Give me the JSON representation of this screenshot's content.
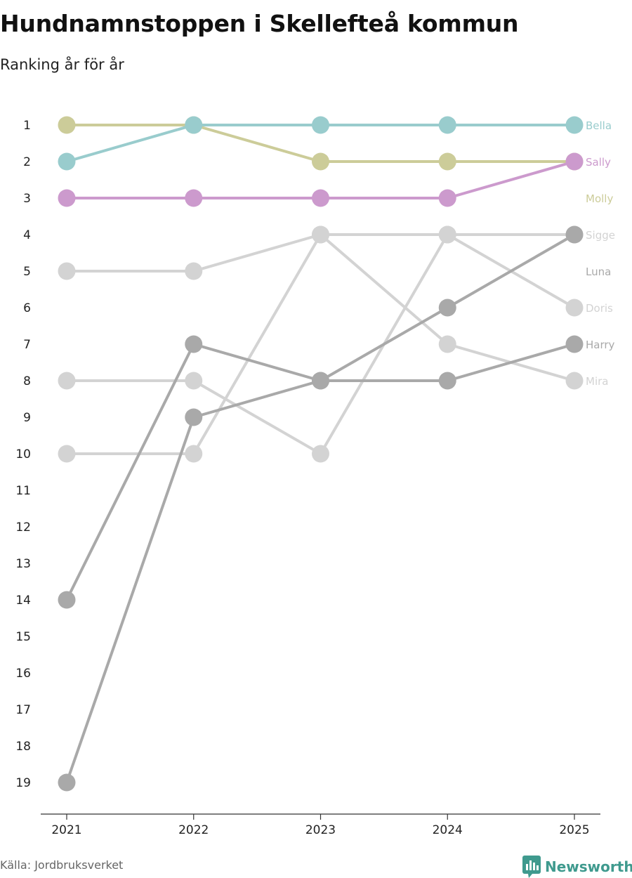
{
  "title": "Hundnamnstoppen i Skellefteå kommun",
  "subtitle": "Ranking år för år",
  "source": "Källa: Jordbruksverket",
  "brand": "Newsworthy",
  "colors": {
    "brand": "#3f9a8e"
  },
  "chart_data": {
    "type": "line",
    "title": "Hundnamnstoppen i Skellefteå kommun",
    "subtitle": "Ranking år för år",
    "x": [
      2021,
      2022,
      2023,
      2024,
      2025
    ],
    "ylim": [
      1,
      19
    ],
    "y_reversed": true,
    "y_ticks": [
      1,
      2,
      3,
      4,
      5,
      6,
      7,
      8,
      9,
      10,
      11,
      12,
      13,
      14,
      15,
      16,
      17,
      18,
      19
    ],
    "series": [
      {
        "name": "Bella",
        "color": "#99cccd",
        "values": [
          2,
          1,
          1,
          1,
          1
        ]
      },
      {
        "name": "Sally",
        "color": "#cc9acd",
        "values": [
          3,
          3,
          3,
          3,
          2
        ]
      },
      {
        "name": "Molly",
        "color": "#cccc99",
        "values": [
          1,
          1,
          2,
          2,
          2
        ]
      },
      {
        "name": "Sigge",
        "color": "#d3d3d3",
        "values": [
          5,
          5,
          4,
          4,
          4
        ]
      },
      {
        "name": "Luna",
        "color": "#a9a9a9",
        "values": [
          14,
          7,
          8,
          6,
          4
        ]
      },
      {
        "name": "Doris",
        "color": "#d3d3d3",
        "values": [
          8,
          8,
          10,
          4,
          6
        ]
      },
      {
        "name": "Harry",
        "color": "#a9a9a9",
        "values": [
          19,
          9,
          8,
          8,
          7
        ]
      },
      {
        "name": "Mira",
        "color": "#d3d3d3",
        "values": [
          10,
          10,
          4,
          7,
          8
        ]
      }
    ]
  }
}
